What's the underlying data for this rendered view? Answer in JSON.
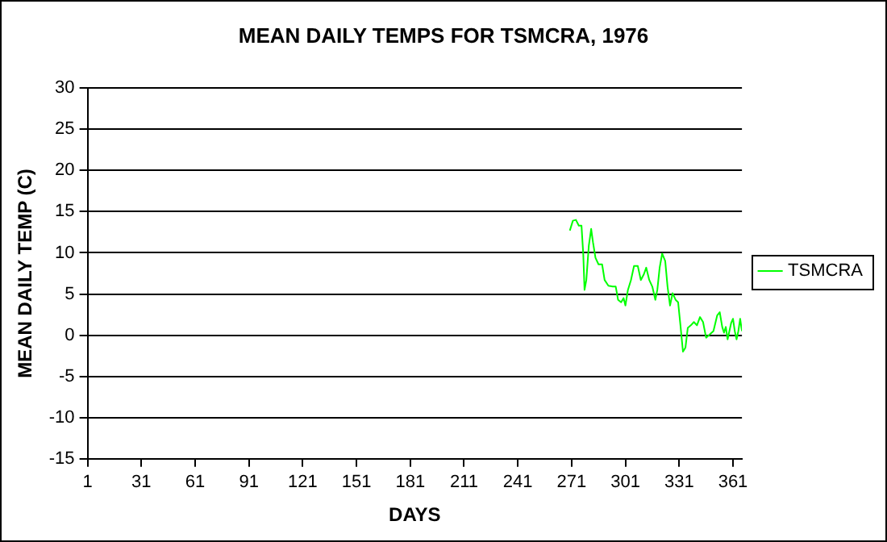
{
  "chart_data": {
    "type": "line",
    "title": "MEAN DAILY TEMPS FOR TSMCRA, 1976",
    "xlabel": "DAYS",
    "ylabel": "MEAN DAILY TEMP (C)",
    "xlim": [
      1,
      366
    ],
    "xticks": [
      1,
      31,
      61,
      91,
      121,
      151,
      181,
      211,
      241,
      271,
      301,
      331,
      361
    ],
    "ylim": [
      -15,
      30
    ],
    "yticks": [
      -15,
      -10,
      -5,
      0,
      5,
      10,
      15,
      20,
      25,
      30
    ],
    "grid": "y",
    "legend": "right",
    "marker": "none",
    "line_style": "solid",
    "x": [
      270,
      271.7,
      273.4,
      275,
      276.5,
      277.5,
      278.2,
      279.2,
      280.6,
      281.9,
      282.9,
      284.3,
      286,
      288,
      289.4,
      291.5,
      293.9,
      295.6,
      296.9,
      298.6,
      300,
      301,
      302.4,
      304.1,
      305.8,
      307.9,
      309.6,
      311.3,
      312.6,
      314.3,
      316,
      317.7,
      318.8,
      320.1,
      321.5,
      323.2,
      324.5,
      325.9,
      327.3,
      329,
      330.4,
      331.7,
      333.1,
      334.5,
      335.8,
      337.5,
      339.2,
      340.9,
      342.6,
      344.3,
      346,
      348.1,
      350.1,
      352.2,
      353.6,
      355,
      356,
      357,
      358,
      359,
      360,
      361,
      362,
      363,
      364,
      365,
      366
    ],
    "series": [
      {
        "name": "TSMCRA",
        "color": "#00ff00",
        "values": [
          12.7,
          13.9,
          14,
          13.3,
          13.3,
          9.8,
          5.5,
          6.7,
          10.9,
          12.9,
          11.3,
          9.4,
          8.6,
          8.6,
          6.7,
          6,
          5.9,
          5.9,
          4.3,
          4,
          4.5,
          3.6,
          5.5,
          6.7,
          8.4,
          8.4,
          6.7,
          7.4,
          8.2,
          6.7,
          5.9,
          4.3,
          5.5,
          8.2,
          9.9,
          9,
          5.9,
          3.6,
          5.1,
          4.3,
          4,
          1.2,
          -2,
          -1.5,
          0.9,
          1.2,
          1.6,
          1.2,
          2.2,
          1.6,
          -0.3,
          0.1,
          0.5,
          2.4,
          2.8,
          1,
          0.3,
          1,
          -0.5,
          0.5,
          1.5,
          2,
          0.5,
          -0.5,
          0.5,
          2,
          0.5
        ]
      }
    ]
  }
}
